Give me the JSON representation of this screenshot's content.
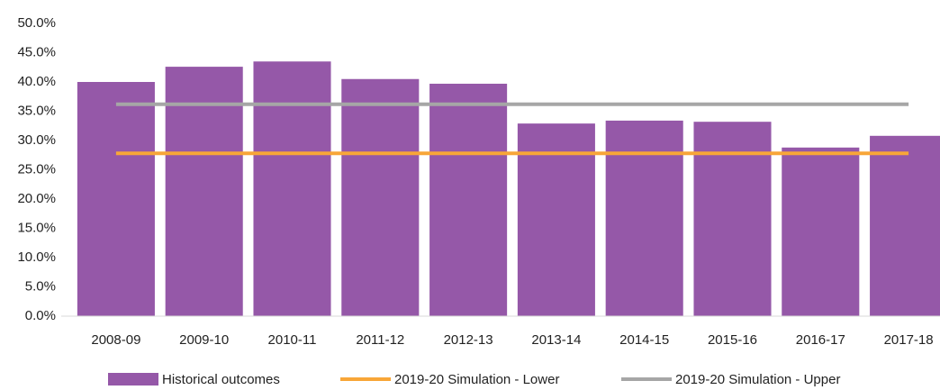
{
  "chart_data": {
    "type": "bar",
    "categories": [
      "2008-09",
      "2009-10",
      "2010-11",
      "2011-12",
      "2012-13",
      "2013-14",
      "2014-15",
      "2015-16",
      "2016-17",
      "2017-18"
    ],
    "series": [
      {
        "name": "Historical outcomes",
        "type": "bar",
        "color": "#9558a8",
        "values": [
          40.0,
          42.6,
          43.5,
          40.5,
          39.7,
          32.9,
          33.4,
          33.2,
          28.8,
          30.8
        ]
      },
      {
        "name": "2019-20 Simulation - Lower",
        "type": "line",
        "color": "#f8a638",
        "values": [
          27.8,
          27.8,
          27.8,
          27.8,
          27.8,
          27.8,
          27.8,
          27.8,
          27.8,
          27.8
        ]
      },
      {
        "name": "2019-20 Simulation - Upper",
        "type": "line",
        "color": "#a6a6a6",
        "values": [
          36.2,
          36.2,
          36.2,
          36.2,
          36.2,
          36.2,
          36.2,
          36.2,
          36.2,
          36.2
        ]
      }
    ],
    "ylim": [
      0,
      50
    ],
    "yticks": [
      {
        "value": 0,
        "label": "0.0%"
      },
      {
        "value": 5,
        "label": "5.0%"
      },
      {
        "value": 10,
        "label": "10.0%"
      },
      {
        "value": 15,
        "label": "15.0%"
      },
      {
        "value": 20,
        "label": "20.0%"
      },
      {
        "value": 25,
        "label": "25.0%"
      },
      {
        "value": 30,
        "label": "30.0%"
      },
      {
        "value": 35,
        "label": "35.0%"
      },
      {
        "value": 40,
        "label": "40.0%"
      },
      {
        "value": 45,
        "label": "45.0%"
      },
      {
        "value": 50,
        "label": "50.0%"
      }
    ],
    "grid": false,
    "legend": "bottom"
  }
}
